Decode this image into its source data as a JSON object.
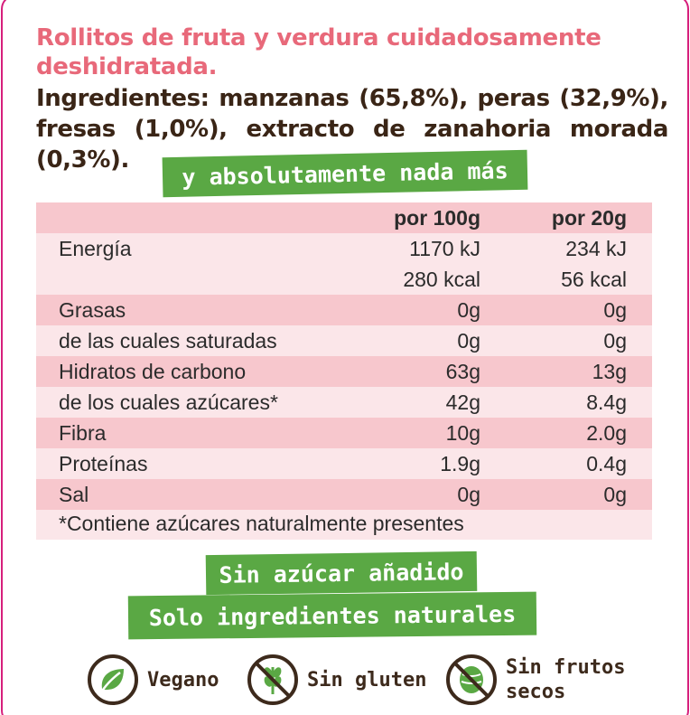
{
  "subtitle": "Rollitos de fruta y verdura cuidadosamente deshidratada.",
  "ingredients": "Ingredientes: manzanas (65,8%), peras (32,9%), fresas (1,0%), extracto de zanahoria morada (0,3%).",
  "nothing_more": "y absolutamente nada más",
  "table": {
    "headers": [
      "por 100g",
      "por 20g"
    ],
    "rows": [
      {
        "label": "Energía",
        "v100": "1170 kJ",
        "v20": "234 kJ"
      },
      {
        "label": "",
        "v100": "280 kcal",
        "v20": "56 kcal"
      },
      {
        "label": "Grasas",
        "v100": "0g",
        "v20": "0g"
      },
      {
        "label": "de las cuales saturadas",
        "v100": "0g",
        "v20": "0g"
      },
      {
        "label": "Hidratos de carbono",
        "v100": "63g",
        "v20": "13g"
      },
      {
        "label": "de los cuales azúcares*",
        "v100": "42g",
        "v20": "8.4g"
      },
      {
        "label": "Fibra",
        "v100": "10g",
        "v20": "2.0g"
      },
      {
        "label": "Proteínas",
        "v100": "1.9g",
        "v20": "0.4g"
      },
      {
        "label": "Sal",
        "v100": "0g",
        "v20": "0g"
      }
    ],
    "note": "*Contiene azúcares naturalmente presentes"
  },
  "claims": [
    "Sin azúcar añadido",
    "Solo ingredientes naturales"
  ],
  "badges": [
    {
      "label": "Vegano",
      "icon": "leaf-icon"
    },
    {
      "label": "Sin gluten",
      "icon": "no-wheat-icon"
    },
    {
      "label_line1": "Sin frutos",
      "label_line2": "secos",
      "icon": "no-nut-icon"
    }
  ],
  "colors": {
    "border": "#d61f7c",
    "subtitle": "#e8697a",
    "text_dark": "#3a2516",
    "banner_green": "#5aa844",
    "table_band": "#f7c7cd",
    "table_light": "#fbe6e9"
  }
}
